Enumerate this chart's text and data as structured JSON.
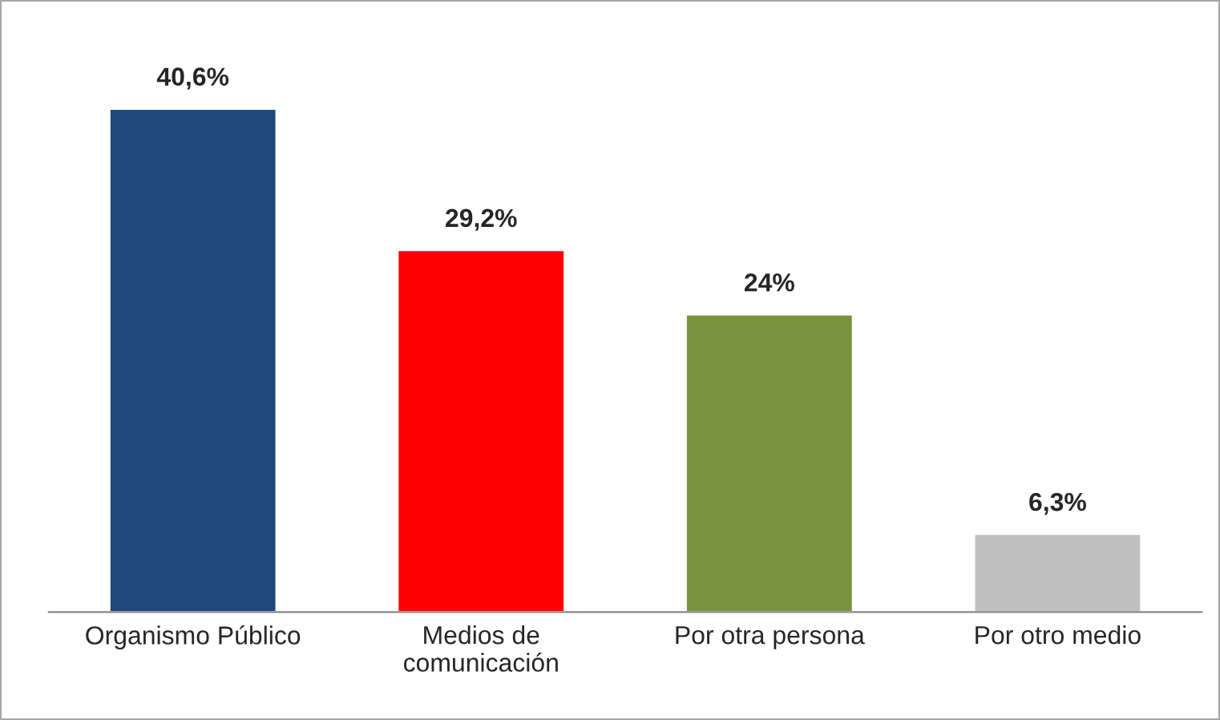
{
  "chart_data": {
    "type": "bar",
    "categories": [
      "Organismo Público",
      "Medios de\ncomunicación",
      "Por otra persona",
      "Por otro medio"
    ],
    "values": [
      40.6,
      29.2,
      24,
      6.3
    ],
    "colors": [
      "#1f497d",
      "#ff0000",
      "#77933c",
      "#bfbfbf"
    ],
    "value_labels": [
      "40,6%",
      "29,2%",
      "24%",
      "6,3%"
    ],
    "grid": false,
    "legend": false
  }
}
